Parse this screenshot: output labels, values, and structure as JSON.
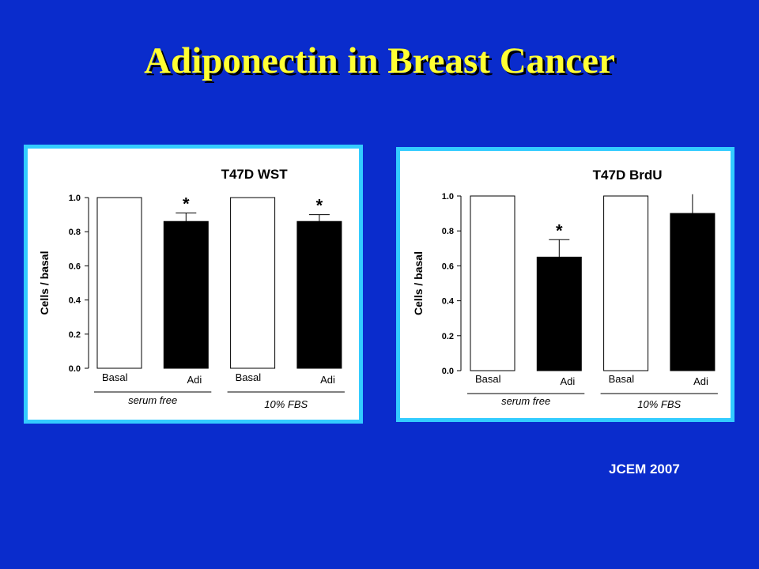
{
  "slide": {
    "title": "Adiponectin in Breast Cancer",
    "citation": "JCEM 2007"
  },
  "colors": {
    "background": "#0a2ccc",
    "title": "#ffff33",
    "panel_border": "#33ccff",
    "bar_basal": "#ffffff",
    "bar_adi": "#000000"
  },
  "chart_data": [
    {
      "type": "bar",
      "title": "T47D WST",
      "ylabel": "Cells / basal",
      "ylim": [
        0,
        1.0
      ],
      "yticks": [
        "0.0",
        "0.2",
        "0.4",
        "0.6",
        "0.8",
        "1.0"
      ],
      "categories": [
        "Basal",
        "Adi",
        "Basal",
        "Adi"
      ],
      "values": [
        1.0,
        0.86,
        1.0,
        0.86
      ],
      "errors": [
        0,
        0.05,
        0,
        0.04
      ],
      "fills": [
        "white",
        "black",
        "white",
        "black"
      ],
      "significance": [
        "",
        "*",
        "",
        "*"
      ],
      "groups": [
        {
          "label": "serum free",
          "span": [
            0,
            1
          ]
        },
        {
          "label": "10% FBS",
          "span": [
            2,
            3
          ]
        }
      ],
      "grid": false
    },
    {
      "type": "bar",
      "title": "T47D BrdU",
      "ylabel": "Cells / basal",
      "ylim": [
        0,
        1.0
      ],
      "yticks": [
        "0.0",
        "0.2",
        "0.4",
        "0.6",
        "0.8",
        "1.0"
      ],
      "categories": [
        "Basal",
        "Adi",
        "Basal",
        "Adi"
      ],
      "values": [
        1.0,
        0.65,
        1.0,
        0.9
      ],
      "errors": [
        0,
        0.1,
        0,
        0.11
      ],
      "fills": [
        "white",
        "black",
        "white",
        "black"
      ],
      "significance": [
        "",
        "*",
        "",
        ""
      ],
      "groups": [
        {
          "label": "serum free",
          "span": [
            0,
            1
          ]
        },
        {
          "label": "10% FBS",
          "span": [
            2,
            3
          ]
        }
      ],
      "grid": false
    }
  ]
}
